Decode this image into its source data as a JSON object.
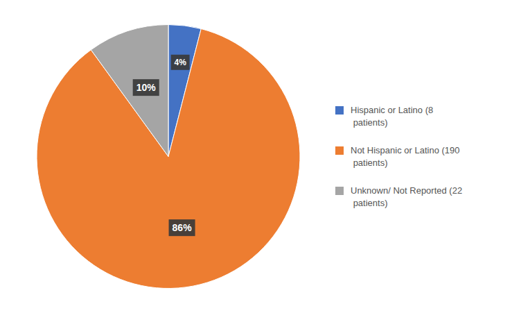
{
  "chart_data": {
    "type": "pie",
    "categories": [
      "Hispanic or Latino (8\n patients)",
      "Not Hispanic or Latino (190\n patients)",
      "Unknown/ Not Reported (22\n patients)"
    ],
    "values": [
      4,
      86,
      10
    ],
    "value_labels": [
      "4%",
      "86%",
      "10%"
    ],
    "colors": [
      "#4472C4",
      "#ED7D31",
      "#A5A5A5"
    ],
    "data_labels": true,
    "legend": "right"
  }
}
